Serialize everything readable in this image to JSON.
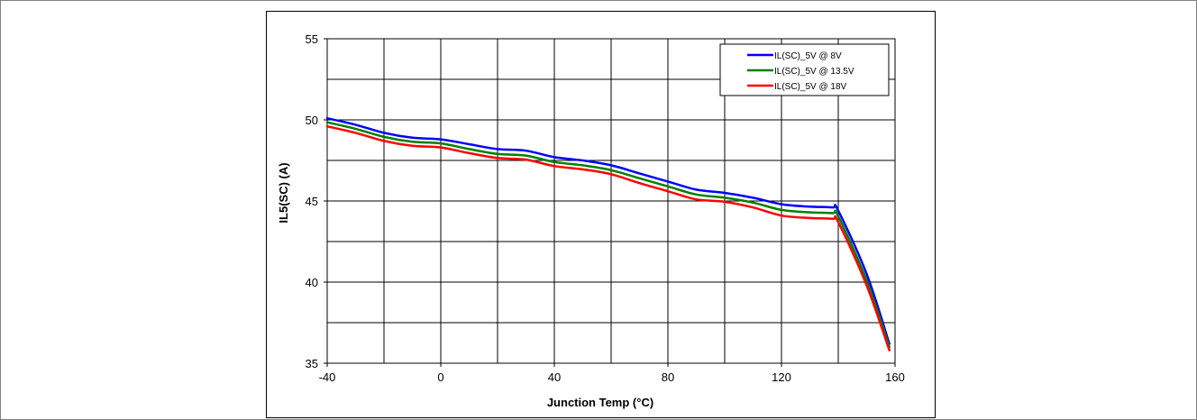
{
  "chart_data": {
    "type": "line",
    "title": "",
    "xlabel": "Junction Temp (°C)",
    "ylabel": "IL5(SC)  (A)",
    "xlim": [
      -40,
      160
    ],
    "ylim": [
      35,
      55
    ],
    "x_ticks": [
      -40,
      0,
      40,
      80,
      120,
      160
    ],
    "y_ticks": [
      35,
      40,
      45,
      50,
      55
    ],
    "grid": true,
    "legend_position": "top-right",
    "series": [
      {
        "name": "IL(SC)_5V @ 8V",
        "color": "#0000ff",
        "x": [
          -40,
          -30,
          -20,
          -10,
          0,
          10,
          20,
          30,
          40,
          50,
          60,
          70,
          80,
          90,
          100,
          110,
          120,
          130,
          138,
          140,
          150,
          158
        ],
        "y": [
          50.1,
          49.7,
          49.2,
          48.9,
          48.8,
          48.5,
          48.2,
          48.1,
          47.7,
          47.5,
          47.2,
          46.7,
          46.2,
          45.7,
          45.5,
          45.2,
          44.8,
          44.65,
          44.6,
          44.4,
          40.5,
          36.2
        ]
      },
      {
        "name": "IL(SC)_5V @ 13.5V",
        "color": "#008000",
        "x": [
          -40,
          -30,
          -20,
          -10,
          0,
          10,
          20,
          30,
          40,
          50,
          60,
          70,
          80,
          90,
          100,
          110,
          120,
          130,
          138,
          140,
          150,
          158
        ],
        "y": [
          49.85,
          49.45,
          48.95,
          48.65,
          48.55,
          48.2,
          47.9,
          47.8,
          47.4,
          47.2,
          46.9,
          46.4,
          45.9,
          45.4,
          45.2,
          44.9,
          44.45,
          44.3,
          44.25,
          44.05,
          40.1,
          36.0
        ]
      },
      {
        "name": "IL(SC)_5V @ 18V",
        "color": "#ff0000",
        "x": [
          -40,
          -30,
          -20,
          -10,
          0,
          10,
          20,
          30,
          40,
          50,
          60,
          70,
          80,
          90,
          100,
          110,
          120,
          130,
          138,
          140,
          150,
          158
        ],
        "y": [
          49.6,
          49.2,
          48.7,
          48.4,
          48.3,
          47.95,
          47.65,
          47.55,
          47.15,
          46.95,
          46.65,
          46.1,
          45.6,
          45.1,
          44.95,
          44.6,
          44.1,
          43.95,
          43.9,
          43.7,
          39.8,
          35.8
        ]
      }
    ]
  }
}
